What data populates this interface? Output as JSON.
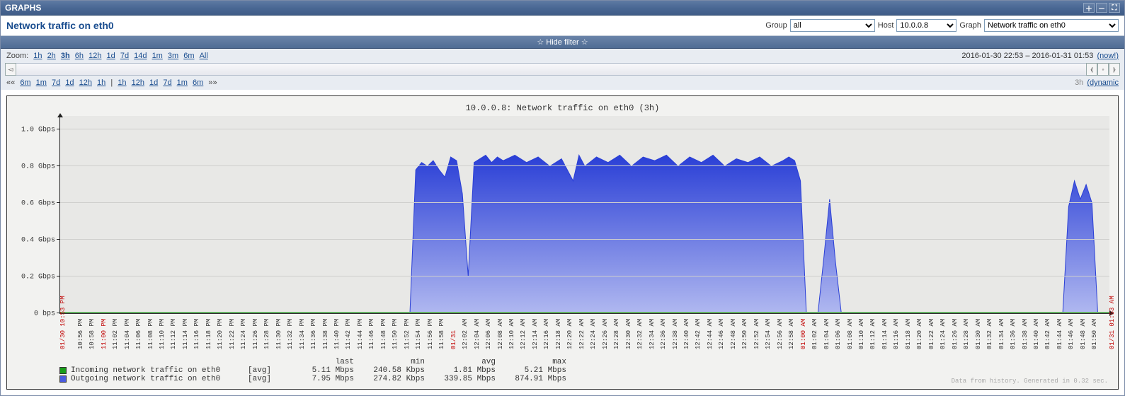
{
  "window": {
    "title": "GRAPHS"
  },
  "header": {
    "title": "Network traffic on eth0",
    "group_label": "Group",
    "group_value": "all",
    "host_label": "Host",
    "host_value": "10.0.0.8",
    "graph_label": "Graph",
    "graph_value": "Network traffic on eth0"
  },
  "hidefilter": "☆ Hide filter ☆",
  "zoom": {
    "label": "Zoom:",
    "options": [
      "1h",
      "2h",
      "3h",
      "6h",
      "12h",
      "1d",
      "7d",
      "14d",
      "1m",
      "3m",
      "6m",
      "All"
    ],
    "selected": "3h"
  },
  "timerange": {
    "from": "2016-01-30 22:53",
    "sep": " – ",
    "to": "2016-01-31 01:53",
    "now": "(now!)"
  },
  "nav": {
    "left_arrows": "««",
    "left": [
      "6m",
      "1m",
      "7d",
      "1d",
      "12h",
      "1h"
    ],
    "pipe": "|",
    "right": [
      "1h",
      "12h",
      "1d",
      "7d",
      "1m",
      "6m"
    ],
    "right_arrows": "»»",
    "mode_span": "3h",
    "mode_link": "(dynamic"
  },
  "chart": {
    "title": "10.0.0.8: Network traffic on eth0 (3h)",
    "type": "area",
    "background_color": "#e8e8e6",
    "grid_color": "#cfcfcd",
    "y": {
      "min": 0,
      "max": 1.0,
      "ticks": [
        {
          "v": 0.0,
          "label": "0 bps"
        },
        {
          "v": 0.2,
          "label": "0.2 Gbps"
        },
        {
          "v": 0.4,
          "label": "0.4 Gbps"
        },
        {
          "v": 0.6,
          "label": "0.6 Gbps"
        },
        {
          "v": 0.8,
          "label": "0.8 Gbps"
        },
        {
          "v": 1.0,
          "label": "1.0 Gbps"
        }
      ]
    },
    "x": {
      "start_min": 0,
      "end_min": 180,
      "labels": [
        {
          "m": 0,
          "t": "10:53 PM",
          "red": true,
          "date": "01/30"
        },
        {
          "m": 3,
          "t": "10:56 PM"
        },
        {
          "m": 5,
          "t": "10:58 PM"
        },
        {
          "m": 7,
          "t": "11:00 PM",
          "red": true
        },
        {
          "m": 9,
          "t": "11:02 PM"
        },
        {
          "m": 11,
          "t": "11:04 PM"
        },
        {
          "m": 13,
          "t": "11:06 PM"
        },
        {
          "m": 15,
          "t": "11:08 PM"
        },
        {
          "m": 17,
          "t": "11:10 PM"
        },
        {
          "m": 19,
          "t": "11:12 PM"
        },
        {
          "m": 21,
          "t": "11:14 PM"
        },
        {
          "m": 23,
          "t": "11:16 PM"
        },
        {
          "m": 25,
          "t": "11:18 PM"
        },
        {
          "m": 27,
          "t": "11:20 PM"
        },
        {
          "m": 29,
          "t": "11:22 PM"
        },
        {
          "m": 31,
          "t": "11:24 PM"
        },
        {
          "m": 33,
          "t": "11:26 PM"
        },
        {
          "m": 35,
          "t": "11:28 PM"
        },
        {
          "m": 37,
          "t": "11:30 PM"
        },
        {
          "m": 39,
          "t": "11:32 PM"
        },
        {
          "m": 41,
          "t": "11:34 PM"
        },
        {
          "m": 43,
          "t": "11:36 PM"
        },
        {
          "m": 45,
          "t": "11:38 PM"
        },
        {
          "m": 47,
          "t": "11:40 PM"
        },
        {
          "m": 49,
          "t": "11:42 PM"
        },
        {
          "m": 51,
          "t": "11:44 PM"
        },
        {
          "m": 53,
          "t": "11:46 PM"
        },
        {
          "m": 55,
          "t": "11:48 PM"
        },
        {
          "m": 57,
          "t": "11:50 PM"
        },
        {
          "m": 59,
          "t": "11:52 PM"
        },
        {
          "m": 61,
          "t": "11:54 PM"
        },
        {
          "m": 63,
          "t": "11:56 PM"
        },
        {
          "m": 65,
          "t": "11:58 PM"
        },
        {
          "m": 67,
          "t": "",
          "red": true,
          "date": "01/31"
        },
        {
          "m": 69,
          "t": "12:02 AM"
        },
        {
          "m": 71,
          "t": "12:04 AM"
        },
        {
          "m": 73,
          "t": "12:06 AM"
        },
        {
          "m": 75,
          "t": "12:08 AM"
        },
        {
          "m": 77,
          "t": "12:10 AM"
        },
        {
          "m": 79,
          "t": "12:12 AM"
        },
        {
          "m": 81,
          "t": "12:14 AM"
        },
        {
          "m": 83,
          "t": "12:16 AM"
        },
        {
          "m": 85,
          "t": "12:18 AM"
        },
        {
          "m": 87,
          "t": "12:20 AM"
        },
        {
          "m": 89,
          "t": "12:22 AM"
        },
        {
          "m": 91,
          "t": "12:24 AM"
        },
        {
          "m": 93,
          "t": "12:26 AM"
        },
        {
          "m": 95,
          "t": "12:28 AM"
        },
        {
          "m": 97,
          "t": "12:30 AM"
        },
        {
          "m": 99,
          "t": "12:32 AM"
        },
        {
          "m": 101,
          "t": "12:34 AM"
        },
        {
          "m": 103,
          "t": "12:36 AM"
        },
        {
          "m": 105,
          "t": "12:38 AM"
        },
        {
          "m": 107,
          "t": "12:40 AM"
        },
        {
          "m": 109,
          "t": "12:42 AM"
        },
        {
          "m": 111,
          "t": "12:44 AM"
        },
        {
          "m": 113,
          "t": "12:46 AM"
        },
        {
          "m": 115,
          "t": "12:48 AM"
        },
        {
          "m": 117,
          "t": "12:50 AM"
        },
        {
          "m": 119,
          "t": "12:52 AM"
        },
        {
          "m": 121,
          "t": "12:54 AM"
        },
        {
          "m": 123,
          "t": "12:56 AM"
        },
        {
          "m": 125,
          "t": "12:58 AM"
        },
        {
          "m": 127,
          "t": "01:00 AM",
          "red": true
        },
        {
          "m": 129,
          "t": "01:02 AM"
        },
        {
          "m": 131,
          "t": "01:04 AM"
        },
        {
          "m": 133,
          "t": "01:06 AM"
        },
        {
          "m": 135,
          "t": "01:08 AM"
        },
        {
          "m": 137,
          "t": "01:10 AM"
        },
        {
          "m": 139,
          "t": "01:12 AM"
        },
        {
          "m": 141,
          "t": "01:14 AM"
        },
        {
          "m": 143,
          "t": "01:16 AM"
        },
        {
          "m": 145,
          "t": "01:18 AM"
        },
        {
          "m": 147,
          "t": "01:20 AM"
        },
        {
          "m": 149,
          "t": "01:22 AM"
        },
        {
          "m": 151,
          "t": "01:24 AM"
        },
        {
          "m": 153,
          "t": "01:26 AM"
        },
        {
          "m": 155,
          "t": "01:28 AM"
        },
        {
          "m": 157,
          "t": "01:30 AM"
        },
        {
          "m": 159,
          "t": "01:32 AM"
        },
        {
          "m": 161,
          "t": "01:34 AM"
        },
        {
          "m": 163,
          "t": "01:36 AM"
        },
        {
          "m": 165,
          "t": "01:38 AM"
        },
        {
          "m": 167,
          "t": "01:40 AM"
        },
        {
          "m": 169,
          "t": "01:42 AM"
        },
        {
          "m": 171,
          "t": "01:44 AM"
        },
        {
          "m": 173,
          "t": "01:46 AM"
        },
        {
          "m": 175,
          "t": "01:48 AM"
        },
        {
          "m": 177,
          "t": "01:50 AM"
        },
        {
          "m": 180,
          "t": "01:53 AM",
          "red": true,
          "date": "01/31"
        }
      ]
    },
    "series": {
      "incoming": {
        "name": "Incoming network traffic on eth0",
        "color": "#1a9e1a"
      },
      "outgoing": {
        "name": "Outgoing network traffic on eth0",
        "color_top": "#2a3fd6",
        "color_bottom": "#b0b8f0",
        "points": [
          [
            0,
            0.0
          ],
          [
            60,
            0.0
          ],
          [
            61,
            0.78
          ],
          [
            62,
            0.82
          ],
          [
            63,
            0.8
          ],
          [
            64,
            0.83
          ],
          [
            65,
            0.78
          ],
          [
            66,
            0.74
          ],
          [
            67,
            0.85
          ],
          [
            68,
            0.83
          ],
          [
            69,
            0.65
          ],
          [
            70,
            0.2
          ],
          [
            71,
            0.82
          ],
          [
            72,
            0.84
          ],
          [
            73,
            0.86
          ],
          [
            74,
            0.82
          ],
          [
            75,
            0.85
          ],
          [
            76,
            0.83
          ],
          [
            78,
            0.86
          ],
          [
            80,
            0.82
          ],
          [
            82,
            0.85
          ],
          [
            84,
            0.8
          ],
          [
            86,
            0.84
          ],
          [
            88,
            0.72
          ],
          [
            89,
            0.86
          ],
          [
            90,
            0.8
          ],
          [
            92,
            0.85
          ],
          [
            94,
            0.82
          ],
          [
            96,
            0.86
          ],
          [
            98,
            0.8
          ],
          [
            100,
            0.85
          ],
          [
            102,
            0.83
          ],
          [
            104,
            0.86
          ],
          [
            106,
            0.8
          ],
          [
            108,
            0.85
          ],
          [
            110,
            0.82
          ],
          [
            112,
            0.86
          ],
          [
            114,
            0.8
          ],
          [
            116,
            0.84
          ],
          [
            118,
            0.82
          ],
          [
            120,
            0.85
          ],
          [
            122,
            0.8
          ],
          [
            124,
            0.83
          ],
          [
            125,
            0.85
          ],
          [
            126,
            0.83
          ],
          [
            127,
            0.72
          ],
          [
            128,
            0.0
          ],
          [
            130,
            0.0
          ],
          [
            131,
            0.3
          ],
          [
            132,
            0.62
          ],
          [
            133,
            0.28
          ],
          [
            134,
            0.0
          ],
          [
            172,
            0.0
          ],
          [
            173,
            0.58
          ],
          [
            174,
            0.72
          ],
          [
            175,
            0.62
          ],
          [
            176,
            0.7
          ],
          [
            177,
            0.6
          ],
          [
            178,
            0.0
          ],
          [
            180,
            0.0
          ]
        ]
      }
    },
    "legend": {
      "headers": [
        "last",
        "min",
        "avg",
        "max"
      ],
      "rows": [
        {
          "swatch": "#1a9e1a",
          "name": "Incoming network traffic on eth0",
          "agg": "[avg]",
          "last": "5.11 Mbps",
          "min": "240.58 Kbps",
          "avg": "1.81 Mbps",
          "max": "5.21 Mbps"
        },
        {
          "swatch": "#4a5be0",
          "name": "Outgoing network traffic on eth0",
          "agg": "[avg]",
          "last": "7.95 Mbps",
          "min": "274.82 Kbps",
          "avg": "339.85 Mbps",
          "max": "874.91 Mbps"
        }
      ]
    },
    "footnote": "Data from history. Generated in 0.32 sec."
  }
}
